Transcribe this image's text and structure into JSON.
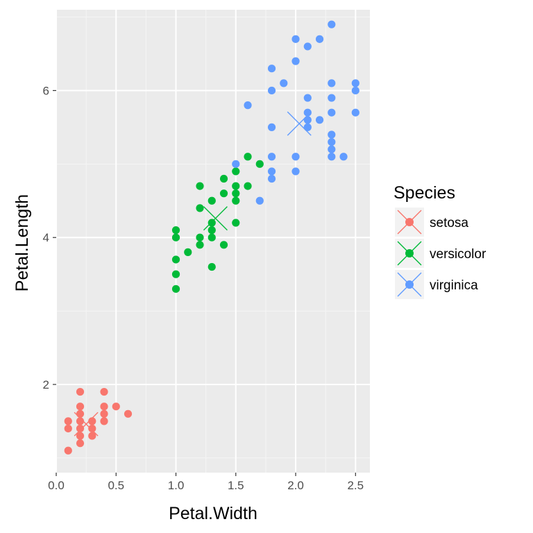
{
  "chart_data": {
    "type": "scatter",
    "xlabel": "Petal.Width",
    "ylabel": "Petal.Length",
    "xlim": [
      0.0,
      2.62
    ],
    "ylim": [
      0.8,
      7.1
    ],
    "x_ticks": [
      "0.0",
      "0.5",
      "1.0",
      "1.5",
      "2.0",
      "2.5"
    ],
    "y_ticks": [
      "2",
      "4",
      "6"
    ],
    "grid": true,
    "legend": {
      "title": "Species",
      "placement": "right"
    },
    "series": [
      {
        "name": "setosa",
        "color": "#F8766D",
        "points": [
          [
            0.1,
            1.1
          ],
          [
            0.1,
            1.4
          ],
          [
            0.1,
            1.5
          ],
          [
            0.2,
            1.2
          ],
          [
            0.2,
            1.3
          ],
          [
            0.2,
            1.4
          ],
          [
            0.2,
            1.5
          ],
          [
            0.2,
            1.6
          ],
          [
            0.2,
            1.7
          ],
          [
            0.2,
            1.9
          ],
          [
            0.3,
            1.3
          ],
          [
            0.3,
            1.4
          ],
          [
            0.3,
            1.5
          ],
          [
            0.4,
            1.5
          ],
          [
            0.4,
            1.6
          ],
          [
            0.4,
            1.7
          ],
          [
            0.4,
            1.9
          ],
          [
            0.5,
            1.7
          ],
          [
            0.6,
            1.6
          ]
        ],
        "centroid": [
          0.25,
          1.46
        ]
      },
      {
        "name": "versicolor",
        "color": "#00BA38",
        "points": [
          [
            1.0,
            3.3
          ],
          [
            1.0,
            3.5
          ],
          [
            1.0,
            3.7
          ],
          [
            1.0,
            4.0
          ],
          [
            1.0,
            4.1
          ],
          [
            1.1,
            3.8
          ],
          [
            1.2,
            3.9
          ],
          [
            1.2,
            4.0
          ],
          [
            1.2,
            4.4
          ],
          [
            1.2,
            4.7
          ],
          [
            1.3,
            3.6
          ],
          [
            1.3,
            4.0
          ],
          [
            1.3,
            4.1
          ],
          [
            1.3,
            4.2
          ],
          [
            1.3,
            4.5
          ],
          [
            1.4,
            3.9
          ],
          [
            1.4,
            4.6
          ],
          [
            1.4,
            4.8
          ],
          [
            1.5,
            4.2
          ],
          [
            1.5,
            4.5
          ],
          [
            1.5,
            4.6
          ],
          [
            1.5,
            4.7
          ],
          [
            1.5,
            4.9
          ],
          [
            1.6,
            4.7
          ],
          [
            1.6,
            5.1
          ],
          [
            1.7,
            5.0
          ]
        ],
        "centroid": [
          1.33,
          4.26
        ]
      },
      {
        "name": "virginica",
        "color": "#619CFF",
        "points": [
          [
            1.5,
            5.0
          ],
          [
            1.7,
            4.5
          ],
          [
            1.8,
            4.8
          ],
          [
            1.8,
            4.9
          ],
          [
            1.8,
            5.1
          ],
          [
            1.8,
            5.5
          ],
          [
            1.8,
            6.0
          ],
          [
            1.8,
            6.3
          ],
          [
            1.9,
            6.1
          ],
          [
            2.0,
            4.9
          ],
          [
            2.0,
            5.1
          ],
          [
            2.0,
            6.4
          ],
          [
            2.0,
            6.7
          ],
          [
            2.1,
            5.5
          ],
          [
            2.1,
            5.6
          ],
          [
            2.1,
            5.7
          ],
          [
            2.1,
            5.9
          ],
          [
            2.1,
            6.6
          ],
          [
            2.2,
            5.6
          ],
          [
            2.2,
            6.7
          ],
          [
            2.3,
            5.1
          ],
          [
            2.3,
            5.2
          ],
          [
            2.3,
            5.3
          ],
          [
            2.3,
            5.4
          ],
          [
            2.3,
            5.7
          ],
          [
            2.3,
            5.9
          ],
          [
            2.3,
            6.1
          ],
          [
            2.3,
            6.9
          ],
          [
            2.4,
            5.1
          ],
          [
            2.5,
            5.7
          ],
          [
            2.5,
            6.0
          ],
          [
            2.5,
            6.1
          ],
          [
            1.6,
            5.8
          ]
        ],
        "centroid": [
          2.03,
          5.55
        ]
      }
    ]
  }
}
